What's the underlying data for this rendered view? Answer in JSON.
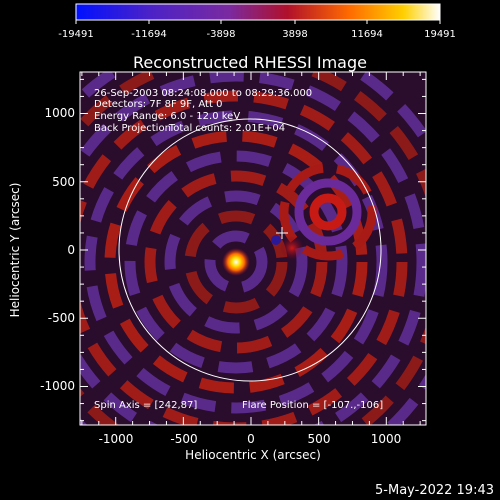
{
  "colorbar": {
    "tick_labels": [
      "-19491",
      "-11694",
      "-3898",
      "3898",
      "11694",
      "19491"
    ],
    "colors": [
      "#0010ff",
      "#4a22c8",
      "#7a2aa0",
      "#b0102a",
      "#ff6a00",
      "#ffd000",
      "#ffffff"
    ]
  },
  "plot": {
    "title": "Reconstructed RHESSI Image",
    "xlabel": "Heliocentric X (arcsec)",
    "ylabel": "Heliocentric Y (arcsec)",
    "x_ticks": [
      "-1000",
      "-500",
      "0",
      "500",
      "1000"
    ],
    "y_ticks": [
      "1000",
      "500",
      "0",
      "-500",
      "-1000"
    ],
    "info_lines": [
      "26-Sep-2003 08:24:08.000 to 08:29:36.000",
      "Detectors: 7F 8F 9F, Att 0",
      "Energy Range: 6.0 - 12.0 keV"
    ],
    "method": "Back Projection",
    "total_counts": "Total counts: 2.01E+04",
    "spin_axis": "Spin Axis = [242,87]",
    "flare_position": "Flare Position = [-107.,-106]"
  },
  "footer": {
    "date": "5-May-2022 19:43"
  }
}
